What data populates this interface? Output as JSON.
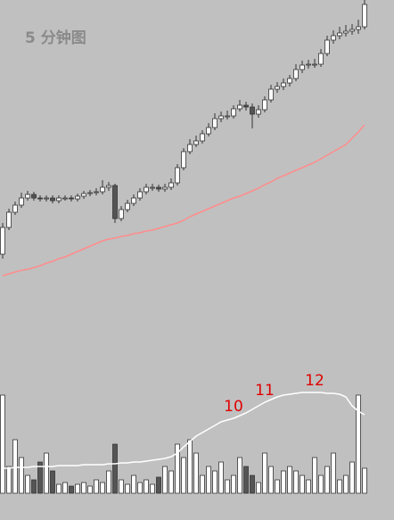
{
  "chart_data": [
    {
      "type": "candlestick",
      "title": "5 分钟图",
      "open": [
        45,
        75,
        92,
        100,
        108,
        112,
        108,
        107,
        108,
        105,
        108,
        108,
        107,
        110,
        113,
        114,
        115,
        120,
        122,
        85,
        95,
        102,
        108,
        115,
        120,
        120,
        118,
        120,
        125,
        142,
        160,
        168,
        172,
        180,
        187,
        197,
        200,
        200,
        208,
        212,
        210,
        202,
        207,
        218,
        230,
        233,
        237,
        242,
        252,
        257,
        258,
        258,
        270,
        285,
        290,
        293,
        295,
        297,
        300
      ],
      "high": [
        80,
        96,
        104,
        114,
        116,
        115,
        111,
        111,
        111,
        111,
        111,
        111,
        113,
        116,
        117,
        119,
        128,
        126,
        124,
        99,
        106,
        112,
        119,
        124,
        124,
        123,
        124,
        130,
        146,
        164,
        174,
        178,
        184,
        192,
        203,
        205,
        206,
        212,
        218,
        216,
        214,
        212,
        222,
        235,
        238,
        242,
        246,
        258,
        262,
        263,
        264,
        275,
        290,
        296,
        300,
        302,
        303,
        308,
        335
      ],
      "low": [
        40,
        72,
        89,
        97,
        105,
        105,
        104,
        104,
        102,
        102,
        105,
        104,
        104,
        107,
        110,
        111,
        112,
        116,
        80,
        82,
        92,
        99,
        105,
        112,
        116,
        115,
        115,
        117,
        122,
        139,
        157,
        165,
        169,
        177,
        184,
        193,
        196,
        197,
        205,
        206,
        186,
        198,
        204,
        215,
        226,
        229,
        233,
        239,
        248,
        253,
        254,
        255,
        267,
        281,
        286,
        289,
        291,
        292,
        297
      ],
      "close": [
        75,
        92,
        100,
        108,
        112,
        108,
        107,
        108,
        105,
        108,
        108,
        107,
        110,
        113,
        114,
        115,
        120,
        122,
        85,
        95,
        102,
        108,
        115,
        120,
        120,
        118,
        120,
        125,
        142,
        160,
        168,
        172,
        180,
        187,
        197,
        200,
        200,
        208,
        212,
        210,
        202,
        207,
        218,
        230,
        233,
        237,
        242,
        252,
        257,
        258,
        258,
        270,
        285,
        290,
        293,
        295,
        297,
        300,
        325
      ],
      "up_color": "#ffffff",
      "down_color": "#555555",
      "outline_color": "#333333",
      "ma": {
        "color": "#ff8c8c",
        "values": [
          21,
          23,
          25,
          27,
          28,
          30,
          32,
          35,
          37,
          40,
          42,
          45,
          48,
          51,
          54,
          57,
          60,
          62,
          63,
          65,
          66,
          68,
          69,
          71,
          72,
          74,
          76,
          78,
          80,
          83,
          87,
          90,
          93,
          96,
          99,
          102,
          105,
          108,
          110,
          113,
          116,
          119,
          123,
          126,
          130,
          133,
          136,
          139,
          142,
          145,
          148,
          152,
          156,
          160,
          164,
          168,
          175,
          182,
          190
        ]
      },
      "ylim": [
        0,
        330
      ]
    },
    {
      "type": "bar",
      "values": [
        110,
        30,
        60,
        40,
        20,
        15,
        35,
        45,
        25,
        10,
        12,
        8,
        10,
        12,
        8,
        15,
        12,
        25,
        55,
        15,
        10,
        20,
        12,
        15,
        10,
        18,
        30,
        25,
        55,
        40,
        60,
        45,
        20,
        30,
        25,
        35,
        15,
        20,
        40,
        30,
        20,
        12,
        45,
        30,
        15,
        25,
        30,
        25,
        20,
        15,
        40,
        20,
        30,
        45,
        15,
        20,
        35,
        110,
        28
      ],
      "ma": {
        "color": "#ffffff",
        "values": [
          28,
          28,
          29,
          29,
          29,
          30,
          30,
          30,
          30,
          31,
          31,
          31,
          31,
          32,
          32,
          32,
          32,
          33,
          33,
          34,
          34,
          35,
          35,
          36,
          37,
          38,
          39,
          41,
          45,
          52,
          58,
          64,
          68,
          72,
          76,
          80,
          82,
          84,
          87,
          90,
          94,
          98,
          102,
          105,
          108,
          110,
          111,
          112,
          113,
          113,
          113,
          113,
          112,
          112,
          111,
          108,
          98,
          92,
          88
        ]
      },
      "annotations": [
        {
          "text": "10",
          "index": 37
        },
        {
          "text": "11",
          "index": 42
        },
        {
          "text": "12",
          "index": 50
        }
      ],
      "annotation_color": "#e00000",
      "ylim": [
        0,
        143
      ]
    }
  ]
}
